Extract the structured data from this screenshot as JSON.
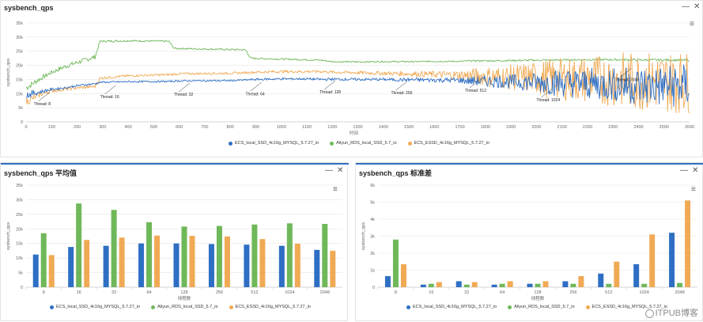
{
  "panels": {
    "top": {
      "title": "sysbench_qps",
      "minimize": "—",
      "close": "✕"
    },
    "avg": {
      "title": "sysbench_qps 平均值",
      "minimize": "—",
      "close": "✕"
    },
    "std": {
      "title": "sysbench_qps 标准差",
      "minimize": "—",
      "close": "✕"
    }
  },
  "menu_icon": "hamburger-menu-icon",
  "colors": {
    "ecs": "#2e6fc4",
    "rds": "#6fb85a",
    "essd": "#f0aa55",
    "accent": "#2f6ec4"
  },
  "legend": [
    "ECS_local_SSD_4c16g_MYSQL_5.7.27_io",
    "Aliyun_RDS_local_SSD_5.7_io",
    "ECS_ESSD_4c16g_MYSQL_5.7.27_io"
  ],
  "watermark": "ITPUB博客",
  "chart_data": [
    {
      "type": "line",
      "title": "sysbench_qps",
      "xlabel": "时间",
      "ylabel": "sysbench_qps",
      "xlim": [
        0,
        2600
      ],
      "ylim": [
        0,
        35000
      ],
      "x_ticks": [
        0,
        100,
        200,
        300,
        400,
        500,
        600,
        700,
        800,
        900,
        1000,
        1100,
        1200,
        1300,
        1400,
        1500,
        1600,
        1700,
        1800,
        1900,
        2000,
        2100,
        2200,
        2300,
        2400,
        2500,
        2600
      ],
      "y_ticks": [
        0,
        5000,
        10000,
        15000,
        20000,
        25000,
        30000,
        35000
      ],
      "y_tick_labels": [
        "0",
        "5k",
        "10k",
        "15k",
        "20k",
        "25k",
        "30k",
        "35k"
      ],
      "series": [
        {
          "name": "ECS_local_SSD_4c16g_MYSQL_5.7.27_io",
          "x": [
            0,
            50,
            100,
            150,
            200,
            270,
            290,
            400,
            560,
            600,
            800,
            860,
            900,
            1000,
            1100,
            1160,
            1200,
            1300,
            1400,
            1450,
            1500,
            1600,
            1700,
            1740,
            1800,
            1900,
            2000,
            2050,
            2100,
            2200,
            2300,
            2340,
            2400,
            2500,
            2600
          ],
          "y": [
            9500,
            10500,
            11500,
            12000,
            12800,
            13500,
            14000,
            14200,
            14300,
            14500,
            14600,
            14800,
            15000,
            15200,
            15200,
            15000,
            15100,
            15000,
            15000,
            14900,
            14900,
            14800,
            14700,
            14500,
            14400,
            14200,
            14000,
            14000,
            13800,
            13500,
            13200,
            13000,
            12800,
            12600,
            12800
          ],
          "spread": [
            1500,
            800,
            500,
            400,
            400,
            400,
            300,
            300,
            300,
            300,
            300,
            300,
            400,
            400,
            400,
            500,
            500,
            500,
            500,
            600,
            700,
            800,
            1000,
            1500,
            2000,
            2500,
            3500,
            4500,
            5000,
            5500,
            6000,
            6500,
            7000,
            7500,
            8000
          ]
        },
        {
          "name": "Aliyun_RDS_local_SSD_5.7_io",
          "x": [
            0,
            50,
            100,
            150,
            200,
            270,
            290,
            400,
            560,
            580,
            800,
            860,
            880,
            1000,
            1100,
            1160,
            1200,
            1300,
            1400,
            1450,
            1500,
            1600,
            1700,
            1740,
            1800,
            1900,
            2000,
            2050,
            2100,
            2200,
            2300,
            2340,
            2400,
            2500,
            2600
          ],
          "y": [
            12000,
            15000,
            17500,
            19500,
            21000,
            23000,
            28500,
            28700,
            28500,
            26000,
            25600,
            25500,
            22500,
            22200,
            22000,
            21800,
            21300,
            21200,
            21300,
            21300,
            21300,
            21400,
            21400,
            21600,
            21600,
            21700,
            21800,
            21800,
            21900,
            22000,
            22000,
            22000,
            21900,
            21900,
            21800
          ],
          "spread": [
            1200,
            900,
            800,
            800,
            800,
            800,
            400,
            300,
            300,
            300,
            300,
            300,
            300,
            300,
            300,
            300,
            250,
            250,
            250,
            250,
            250,
            250,
            250,
            250,
            300,
            300,
            300,
            300,
            300,
            300,
            400,
            400,
            400,
            400,
            400
          ]
        },
        {
          "name": "ECS_ESSD_4c16g_MYSQL_5.7.27_io",
          "x": [
            0,
            50,
            100,
            150,
            200,
            270,
            290,
            400,
            560,
            600,
            800,
            860,
            900,
            1000,
            1100,
            1160,
            1200,
            1300,
            1400,
            1450,
            1500,
            1600,
            1700,
            1740,
            1800,
            1900,
            2000,
            2050,
            2100,
            2200,
            2300,
            2340,
            2400,
            2500,
            2600
          ],
          "y": [
            7000,
            9500,
            11000,
            11500,
            12000,
            12500,
            15500,
            16300,
            16700,
            17000,
            17200,
            17400,
            17600,
            17800,
            17800,
            17800,
            17600,
            17400,
            17200,
            17100,
            17000,
            16800,
            16500,
            16400,
            16000,
            15800,
            15500,
            15300,
            15200,
            15000,
            14800,
            14700,
            14500,
            14200,
            14000
          ],
          "spread": [
            1500,
            1000,
            700,
            600,
            600,
            600,
            500,
            400,
            400,
            400,
            400,
            400,
            500,
            500,
            500,
            500,
            500,
            600,
            700,
            800,
            900,
            1200,
            1800,
            2500,
            3500,
            4500,
            6000,
            7000,
            7500,
            8500,
            9500,
            10000,
            10500,
            11000,
            11000
          ]
        }
      ],
      "annotations": [
        {
          "label": "Thread: 8",
          "x": 30,
          "y": 6500
        },
        {
          "label": "Thread: 16",
          "x": 290,
          "y": 9000
        },
        {
          "label": "Thread: 32",
          "x": 580,
          "y": 9800
        },
        {
          "label": "Thread: 64",
          "x": 860,
          "y": 10000
        },
        {
          "label": "Thread: 128",
          "x": 1150,
          "y": 10600
        },
        {
          "label": "Thread: 256",
          "x": 1430,
          "y": 10300
        },
        {
          "label": "Thread: 512",
          "x": 1720,
          "y": 11200
        },
        {
          "label": "Thread: 1024",
          "x": 2000,
          "y": 7800
        },
        {
          "label": "Thread: 2048",
          "x": 2310,
          "y": 15000
        }
      ],
      "grid": true,
      "legend": "bottom"
    },
    {
      "type": "bar",
      "title": "sysbench_qps 平均值",
      "xlabel": "线程数",
      "ylabel": "sysbench_qps",
      "categories": [
        "8",
        "16",
        "32",
        "64",
        "128",
        "256",
        "512",
        "1024",
        "2048"
      ],
      "ylim": [
        0,
        35000
      ],
      "y_ticks": [
        0,
        5000,
        10000,
        15000,
        20000,
        25000,
        30000,
        35000
      ],
      "y_tick_labels": [
        "0",
        "5k",
        "10k",
        "15k",
        "20k",
        "25k",
        "30k",
        "35k"
      ],
      "series": [
        {
          "name": "ECS_local_SSD_4c16g_MYSQL_5.7.27_io",
          "values": [
            11200,
            13800,
            14200,
            15000,
            15000,
            14800,
            14600,
            14200,
            12800
          ]
        },
        {
          "name": "Aliyun_RDS_local_SSD_5.7_io",
          "values": [
            18500,
            28700,
            26500,
            22300,
            20800,
            21000,
            21500,
            21900,
            21700
          ]
        },
        {
          "name": "ECS_ESSD_4c16g_MYSQL_5.7.27_io",
          "values": [
            11000,
            16200,
            17000,
            17700,
            17600,
            17400,
            16500,
            14900,
            12500
          ]
        }
      ],
      "grid": true,
      "legend": "bottom"
    },
    {
      "type": "bar",
      "title": "sysbench_qps 标准差",
      "xlabel": "线程数",
      "ylabel": "sysbench_qps",
      "categories": [
        "8",
        "16",
        "32",
        "64",
        "128",
        "256",
        "512",
        "1024",
        "2048"
      ],
      "ylim": [
        0,
        6000
      ],
      "y_ticks": [
        0,
        1000,
        2000,
        3000,
        4000,
        5000,
        6000
      ],
      "y_tick_labels": [
        "0",
        "1k",
        "2k",
        "3k",
        "4k",
        "5k",
        "6k"
      ],
      "series": [
        {
          "name": "ECS_local_SSD_4c16g_MYSQL_5.7.27_io",
          "values": [
            650,
            150,
            350,
            150,
            200,
            350,
            800,
            1350,
            3200
          ]
        },
        {
          "name": "Aliyun_RDS_local_SSD_5.7_io",
          "values": [
            2800,
            200,
            150,
            200,
            200,
            200,
            200,
            200,
            250
          ]
        },
        {
          "name": "ECS_ESSD_4c16g_MYSQL_5.7.27_io",
          "values": [
            1350,
            300,
            300,
            350,
            350,
            650,
            1500,
            3100,
            5100
          ]
        }
      ],
      "grid": true,
      "legend": "bottom"
    }
  ]
}
